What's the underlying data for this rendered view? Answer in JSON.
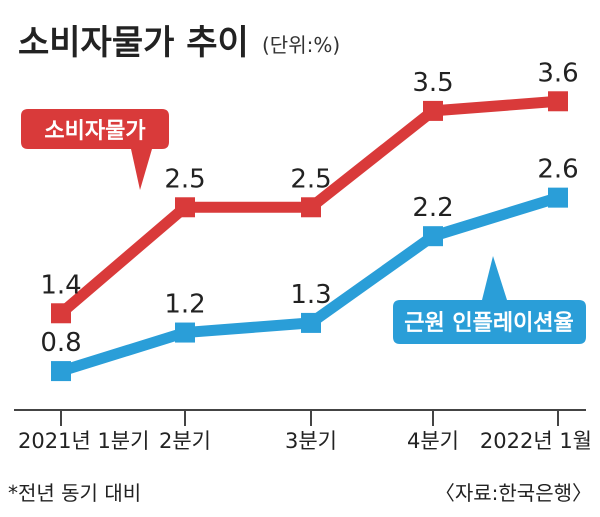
{
  "chart_data": {
    "type": "line",
    "title": "소비자물가 추이",
    "unit_note": "(단위:%)",
    "categories": [
      "2021년 1분기",
      "2분기",
      "3분기",
      "4분기",
      "2022년 1월"
    ],
    "series": [
      {
        "name": "소비자물가",
        "color": "#d93a3a",
        "values": [
          1.4,
          2.5,
          2.5,
          3.5,
          3.6
        ],
        "value_labels": [
          "1.4",
          "2.5",
          "2.5",
          "3.5",
          "3.6"
        ]
      },
      {
        "name": "근원 인플레이션율",
        "color": "#2a9ed8",
        "values": [
          0.8,
          1.2,
          1.3,
          2.2,
          2.6
        ],
        "value_labels": [
          "0.8",
          "1.2",
          "1.3",
          "2.2",
          "2.6"
        ]
      }
    ],
    "ylim": [
      0.5,
      3.8
    ],
    "grid": false,
    "legend": "inline-callouts"
  },
  "footnote": "*전년 동기 대비",
  "source": "〈자료:한국은행〉"
}
